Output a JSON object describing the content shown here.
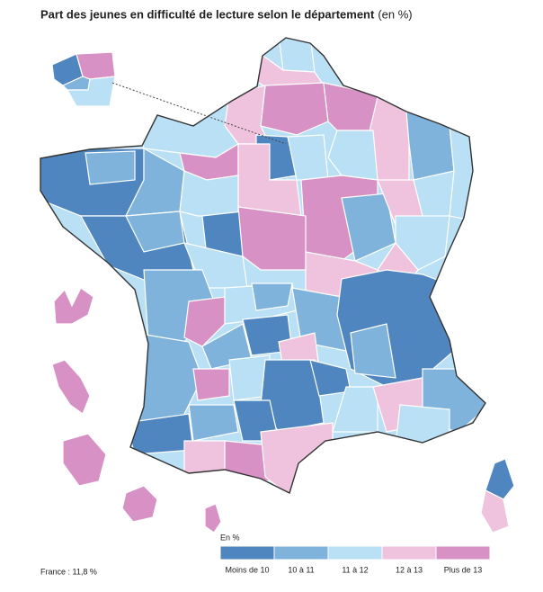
{
  "header": {
    "title": "Part des jeunes en difficulté de lecture selon le département",
    "unit": "(en %)"
  },
  "legend": {
    "title": "En %",
    "classes": [
      {
        "label": "Moins de 10",
        "color": "#4f86bf"
      },
      {
        "label": "10 à 11",
        "color": "#7fb3dc"
      },
      {
        "label": "11 à 12",
        "color": "#b9e0f5"
      },
      {
        "label": "12 à 13",
        "color": "#efc3de"
      },
      {
        "label": "Plus de 13",
        "color": "#d891c4"
      }
    ]
  },
  "note": "France : 11,8 %"
}
